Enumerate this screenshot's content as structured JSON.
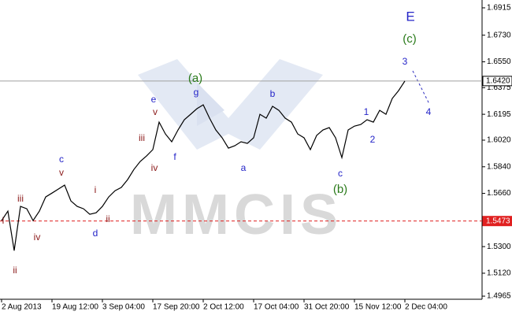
{
  "chart_data": {
    "type": "line",
    "categories": [
      "2 Aug 2013",
      null,
      null,
      null,
      null,
      null,
      null,
      null,
      "19 Aug 12:00",
      null,
      null,
      null,
      null,
      null,
      null,
      null,
      "3 Sep 04:00",
      null,
      null,
      null,
      null,
      null,
      null,
      null,
      "17 Sep 20:00",
      null,
      null,
      null,
      null,
      null,
      null,
      null,
      "2 Oct 12:00",
      null,
      null,
      null,
      null,
      null,
      null,
      null,
      "17 Oct 04:00",
      null,
      null,
      null,
      null,
      null,
      null,
      null,
      "31 Oct 20:00",
      null,
      null,
      null,
      null,
      null,
      null,
      null,
      "15 Nov 12:00",
      null,
      null,
      null,
      null,
      null,
      null,
      null,
      "2 Dec 04:00"
    ],
    "series": [
      {
        "color": "#000000",
        "values": [
          1.5476,
          1.554,
          1.5273,
          1.5572,
          1.5556,
          1.5476,
          1.554,
          1.5636,
          1.5662,
          1.5689,
          1.5716,
          1.5609,
          1.5572,
          1.5556,
          1.5519,
          1.5529,
          1.5572,
          1.5636,
          1.5678,
          1.57,
          1.5753,
          1.5822,
          1.5876,
          1.5913,
          1.5956,
          1.6142,
          1.6062,
          1.6009,
          1.6089,
          1.6158,
          1.6195,
          1.6233,
          1.6259,
          1.6169,
          1.6089,
          1.6036,
          1.5966,
          1.5982,
          1.6009,
          1.5998,
          1.6036,
          1.6195,
          1.6169,
          1.6249,
          1.6222,
          1.6169,
          1.6142,
          1.6062,
          1.6036,
          1.5956,
          1.6052,
          1.6089,
          1.6105,
          1.6036,
          1.5902,
          1.6089,
          1.6115,
          1.6126,
          1.6158,
          1.6142,
          1.6222,
          1.6195,
          1.6302,
          1.6355,
          1.642
        ]
      }
    ],
    "ylim": [
      1.4944,
      1.6968
    ],
    "yticks": [
      1.6915,
      {
        "value": 1.673,
        "label": "1.6730"
      },
      {
        "value": 1.655,
        "label": "1.6550"
      },
      1.6375,
      1.6195,
      {
        "value": 1.602,
        "label": "1.6020"
      },
      {
        "value": 1.584,
        "label": "1.5840"
      },
      {
        "value": 1.566,
        "label": "1.5660"
      },
      {
        "value": 1.53,
        "label": "1.5300"
      },
      {
        "value": 1.512,
        "label": "1.5120"
      },
      1.4965
    ],
    "hlines": [
      {
        "value": 1.642,
        "label": "1.6420",
        "color": "#a0a0a0"
      },
      {
        "value": 1.5473,
        "label": "1.5473",
        "color": "#e02020"
      }
    ],
    "annotations": [
      "E",
      "(c)",
      "3",
      "4",
      "(a)",
      "g",
      "e",
      "v",
      "iii",
      "iv",
      "f",
      "b",
      "a",
      "c",
      "(b)",
      "1",
      "2",
      "c",
      "v",
      "iii",
      "i",
      "ii",
      "d",
      "iv",
      "ii",
      "i"
    ],
    "watermark": "MMCIS"
  }
}
